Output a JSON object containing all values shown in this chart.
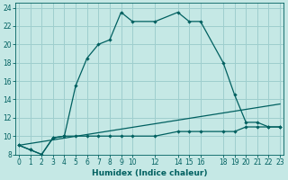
{
  "xlabel": "Humidex (Indice chaleur)",
  "bg_color": "#c5e8e5",
  "grid_color": "#9ecece",
  "line_color": "#006060",
  "xlim": [
    -0.3,
    23.3
  ],
  "ylim": [
    8,
    24.5
  ],
  "xticks": [
    0,
    1,
    2,
    3,
    4,
    5,
    6,
    7,
    8,
    9,
    10,
    12,
    14,
    15,
    16,
    18,
    19,
    20,
    21,
    22,
    23
  ],
  "yticks": [
    8,
    10,
    12,
    14,
    16,
    18,
    20,
    22,
    24
  ],
  "line1_x": [
    0,
    1,
    2,
    3,
    4,
    5,
    6,
    7,
    8,
    9,
    10,
    12,
    14,
    15,
    16,
    18,
    19,
    20,
    21,
    22,
    23
  ],
  "line1_y": [
    9.0,
    8.5,
    8.0,
    9.8,
    10.0,
    15.5,
    18.5,
    20.0,
    20.5,
    23.5,
    22.5,
    22.5,
    23.5,
    22.5,
    22.5,
    18.0,
    14.5,
    11.5,
    11.5,
    11.0,
    11.0
  ],
  "line2_x": [
    0,
    1,
    2,
    3,
    4,
    5,
    6,
    7,
    8,
    9,
    10,
    12,
    14,
    15,
    16,
    18,
    19,
    20,
    21,
    22,
    23
  ],
  "line2_y": [
    9.0,
    8.5,
    8.0,
    9.8,
    10.0,
    10.0,
    10.0,
    10.0,
    10.0,
    10.0,
    10.0,
    10.0,
    10.5,
    10.5,
    10.5,
    10.5,
    10.5,
    11.0,
    11.0,
    11.0,
    11.0
  ],
  "line3_x": [
    0,
    23
  ],
  "line3_y": [
    9.0,
    13.5
  ]
}
